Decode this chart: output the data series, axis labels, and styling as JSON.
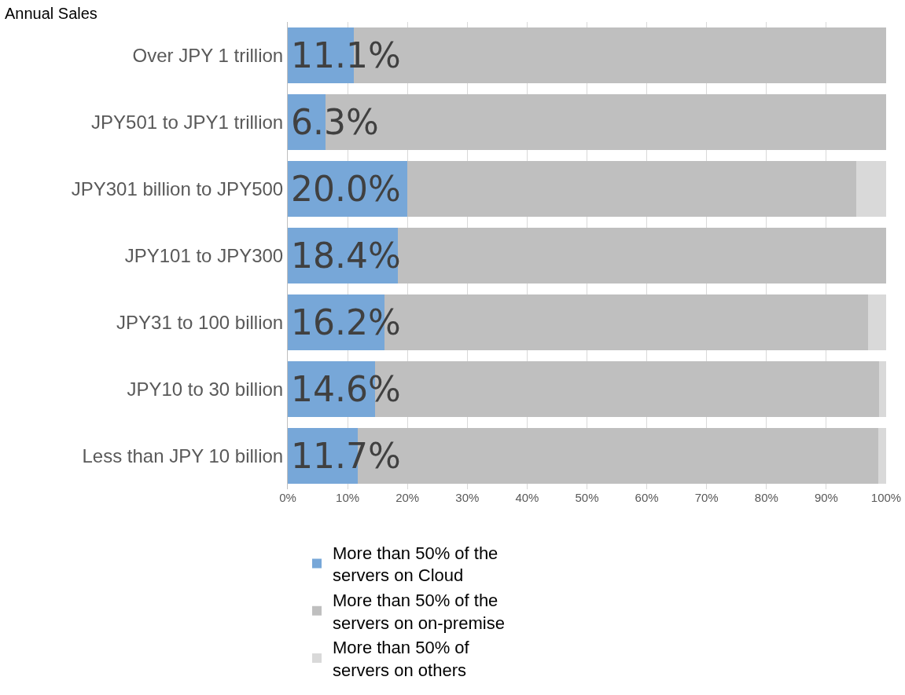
{
  "chart_data": {
    "type": "bar",
    "orientation": "horizontal",
    "stacked": true,
    "ylabel": "Annual Sales",
    "categories": [
      "Over JPY 1 trillion",
      "JPY501 to JPY1 trillion",
      "JPY301 billion to JPY500",
      "JPY101 to JPY300",
      "JPY31 to 100 billion",
      "JPY10 to 30 billion",
      "Less than JPY 10 billion"
    ],
    "series": [
      {
        "name": "More than 50% of the servers on Cloud",
        "color": "#77a7d8",
        "values": [
          11.1,
          6.3,
          20.0,
          18.4,
          16.2,
          14.6,
          11.7
        ],
        "value_labels": [
          "11.1%",
          "6.3%",
          "20.0%",
          "18.4%",
          "16.2%",
          "14.6%",
          "11.7%"
        ]
      },
      {
        "name": "More than 50% of the servers on on-premise",
        "color": "#bfbfbf",
        "values": [
          88.9,
          93.7,
          75.0,
          81.6,
          80.8,
          84.2,
          87.0
        ]
      },
      {
        "name": "More than 50% of servers on others",
        "color": "#d9d9d9",
        "values": [
          0,
          0,
          5.0,
          0,
          3.0,
          1.2,
          1.3
        ]
      }
    ],
    "xlim": [
      0,
      100
    ],
    "xticks": [
      {
        "value": 0,
        "label": "0%"
      },
      {
        "value": 10,
        "label": "10%"
      },
      {
        "value": 20,
        "label": "20%"
      },
      {
        "value": 30,
        "label": "30%"
      },
      {
        "value": 40,
        "label": "40%"
      },
      {
        "value": 50,
        "label": "50%"
      },
      {
        "value": 60,
        "label": "60%"
      },
      {
        "value": 70,
        "label": "70%"
      },
      {
        "value": 80,
        "label": "80%"
      },
      {
        "value": 90,
        "label": "90%"
      },
      {
        "value": 100,
        "label": "100%"
      }
    ],
    "grid": "x",
    "legend": "bottom"
  }
}
